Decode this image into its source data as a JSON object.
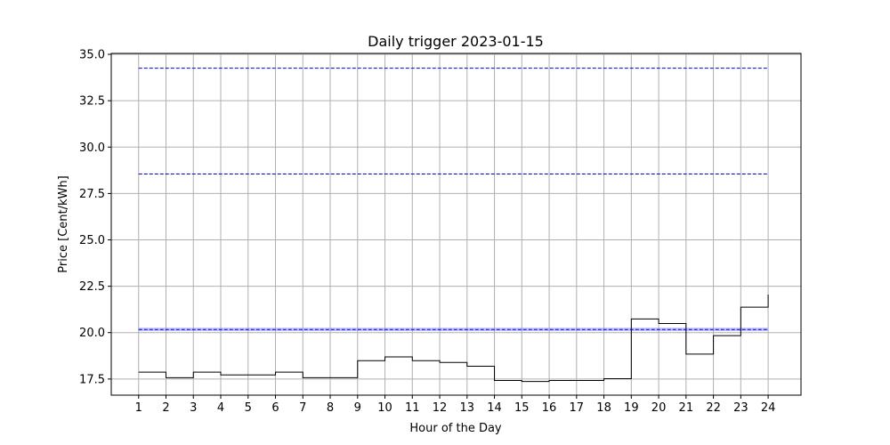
{
  "chart_data": {
    "type": "line",
    "title": "Daily trigger 2023-01-15",
    "xlabel": "Hour of the Day",
    "ylabel": "Price [Cent/kWh]",
    "xlim": [
      0.0,
      25.2
    ],
    "ylim": [
      16.63,
      35.05
    ],
    "grid": true,
    "x_ticks": [
      1,
      2,
      3,
      4,
      5,
      6,
      7,
      8,
      9,
      10,
      11,
      12,
      13,
      14,
      15,
      16,
      17,
      18,
      19,
      20,
      21,
      22,
      23,
      24
    ],
    "y_ticks": [
      17.5,
      20.0,
      22.5,
      25.0,
      27.5,
      30.0,
      32.5,
      35.0
    ],
    "series": [
      {
        "style": "step-post",
        "color": "#000000",
        "x": [
          1,
          2,
          3,
          4,
          5,
          6,
          7,
          8,
          9,
          10,
          11,
          12,
          13,
          14,
          15,
          16,
          17,
          18,
          19,
          20,
          21,
          22,
          23,
          24
        ],
        "values": [
          17.87,
          17.57,
          17.87,
          17.72,
          17.72,
          17.87,
          17.57,
          17.57,
          18.49,
          18.69,
          18.49,
          18.39,
          18.19,
          17.42,
          17.37,
          17.42,
          17.42,
          17.52,
          20.74,
          20.49,
          18.84,
          19.84,
          21.37,
          22.05
        ]
      },
      {
        "style": "dashed",
        "color": "#0000cc",
        "x": [
          1,
          24
        ],
        "values": [
          34.25,
          34.25
        ]
      },
      {
        "style": "dashed",
        "color": "#0000cc",
        "x": [
          1,
          24
        ],
        "values": [
          28.55,
          28.55
        ]
      },
      {
        "style": "dashed",
        "color": "#0000cc",
        "x": [
          1,
          24
        ],
        "values": [
          20.17,
          20.17
        ]
      }
    ],
    "bands": [
      {
        "color": "#8080ff",
        "opacity": 0.45,
        "from": 20.08,
        "to": 20.27,
        "x": [
          1,
          24
        ]
      }
    ]
  }
}
